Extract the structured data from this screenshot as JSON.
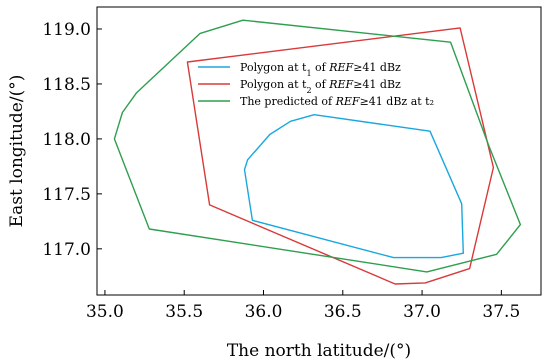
{
  "chart_data": {
    "type": "line",
    "xlabel": "The north latitude/(°)",
    "ylabel": "East longitude/(°)",
    "xlim": [
      34.95,
      37.75
    ],
    "ylim": [
      116.58,
      119.2
    ],
    "xticks": [
      "35.0",
      "35.5",
      "36.0",
      "36.5",
      "37.0",
      "37.5"
    ],
    "yticks": [
      "117.0",
      "117.5",
      "118.0",
      "118.5",
      "119.0"
    ],
    "grid": false,
    "legend_position": "top-center",
    "series": [
      {
        "name_prefix": "Polygon at t",
        "name_sub": "1",
        "name_mid": " of ",
        "name_ital": "REF",
        "name_suffix": "≥41 dBz",
        "color": "#1aa7e0",
        "closed": true,
        "points": [
          [
            35.88,
            117.72
          ],
          [
            35.9,
            117.81
          ],
          [
            36.04,
            118.04
          ],
          [
            36.17,
            118.16
          ],
          [
            36.32,
            118.22
          ],
          [
            37.05,
            118.07
          ],
          [
            37.25,
            117.41
          ],
          [
            37.26,
            116.96
          ],
          [
            37.12,
            116.92
          ],
          [
            36.82,
            116.92
          ],
          [
            35.93,
            117.26
          ]
        ]
      },
      {
        "name_prefix": "Polygon at t",
        "name_sub": "2",
        "name_mid": " of ",
        "name_ital": "REF",
        "name_suffix": "≥41 dBz",
        "color": "#d83a3a",
        "closed": true,
        "points": [
          [
            35.52,
            118.7
          ],
          [
            37.24,
            119.01
          ],
          [
            37.45,
            117.74
          ],
          [
            37.3,
            116.82
          ],
          [
            37.02,
            116.69
          ],
          [
            36.83,
            116.68
          ],
          [
            35.66,
            117.4
          ]
        ]
      },
      {
        "name_prefix": "The predicted of ",
        "name_sub": "",
        "name_mid": "",
        "name_ital": "REF",
        "name_suffix": "≥41 dBz at t₂",
        "color": "#2f9e4f",
        "closed": true,
        "points": [
          [
            35.87,
            119.08
          ],
          [
            37.18,
            118.88
          ],
          [
            37.42,
            117.94
          ],
          [
            37.62,
            117.22
          ],
          [
            37.47,
            116.95
          ],
          [
            37.03,
            116.79
          ],
          [
            35.28,
            117.18
          ],
          [
            35.06,
            118.0
          ],
          [
            35.11,
            118.24
          ],
          [
            35.2,
            118.42
          ],
          [
            35.6,
            118.96
          ]
        ]
      }
    ]
  }
}
